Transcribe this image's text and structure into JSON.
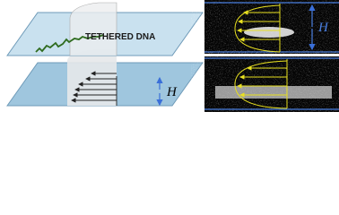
{
  "labels": {
    "tethered_dna": "TETHERED DNA",
    "h_left": "H",
    "h_right": "H"
  }
}
